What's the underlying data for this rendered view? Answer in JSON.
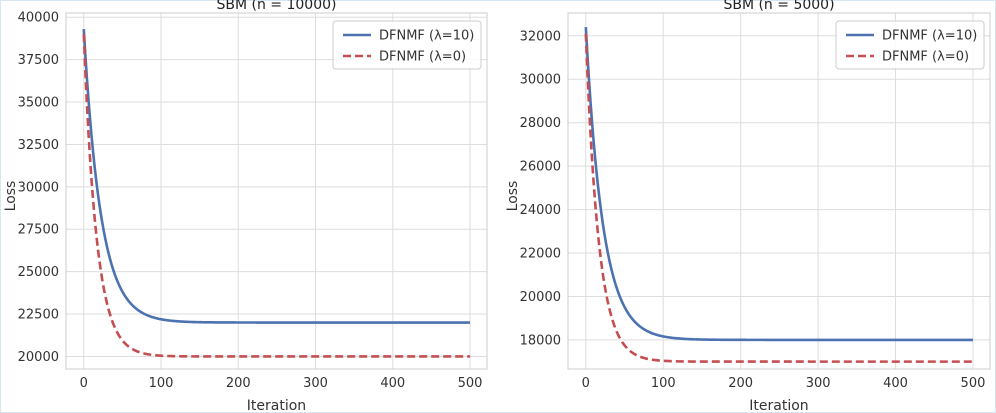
{
  "chart_data": [
    {
      "type": "line",
      "title": "SBM (n = 10000)",
      "xlabel": "Iteration",
      "ylabel": "Loss",
      "xlim": [
        -23,
        522
      ],
      "ylim": [
        19260,
        40250
      ],
      "xticks": [
        0,
        100,
        200,
        300,
        400,
        500
      ],
      "yticks": [
        20000,
        22500,
        25000,
        27500,
        30000,
        32500,
        35000,
        37500,
        40000
      ],
      "grid": true,
      "legend": "top-right",
      "series": [
        {
          "name": "DFNMF (λ=10)",
          "color": "#4c72b0",
          "style": "solid",
          "start": 39300,
          "plateau": 22000,
          "rate": 0.045
        },
        {
          "name": "DFNMF (λ=0)",
          "color": "#c44e52",
          "style": "dashed",
          "start": 39000,
          "plateau": 20000,
          "rate": 0.06
        }
      ]
    },
    {
      "type": "line",
      "title": "SBM (n = 5000)",
      "xlabel": "Iteration",
      "ylabel": "Loss",
      "xlim": [
        -23,
        522
      ],
      "ylim": [
        16660,
        33050
      ],
      "xticks": [
        0,
        100,
        200,
        300,
        400,
        500
      ],
      "yticks": [
        18000,
        20000,
        22000,
        24000,
        26000,
        28000,
        30000,
        32000
      ],
      "grid": true,
      "legend": "top-right",
      "series": [
        {
          "name": "DFNMF (λ=10)",
          "color": "#4c72b0",
          "style": "solid",
          "start": 32400,
          "plateau": 18000,
          "rate": 0.045
        },
        {
          "name": "DFNMF (λ=0)",
          "color": "#c44e52",
          "style": "dashed",
          "start": 32100,
          "plateau": 17000,
          "rate": 0.06
        }
      ]
    }
  ]
}
